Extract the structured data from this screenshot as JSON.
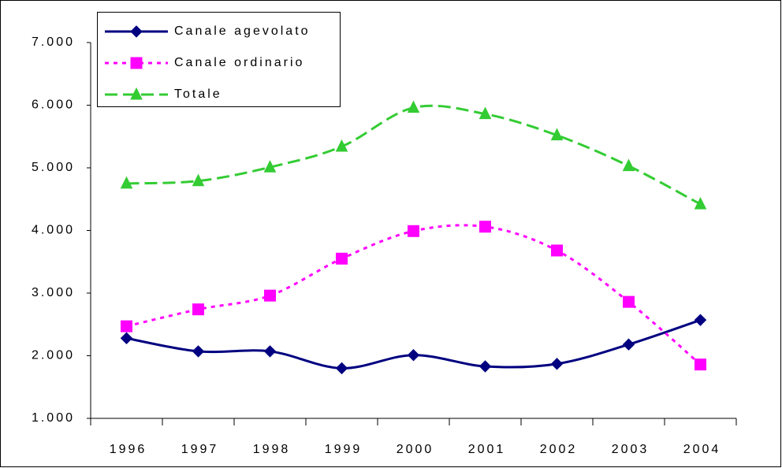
{
  "chart_data": {
    "type": "line",
    "categories": [
      "1996",
      "1997",
      "1998",
      "1999",
      "2000",
      "2001",
      "2002",
      "2003",
      "2004"
    ],
    "series": [
      {
        "name": "Canale agevolato",
        "color": "#000080",
        "marker": "diamond",
        "dash": "solid",
        "values": [
          2280,
          2070,
          2070,
          1800,
          2010,
          1830,
          1870,
          2180,
          2570
        ]
      },
      {
        "name": "Canale ordinario",
        "color": "#ff00ff",
        "marker": "square",
        "dash": "dotted",
        "values": [
          2470,
          2740,
          2960,
          3550,
          3990,
          4060,
          3680,
          2860,
          1860
        ]
      },
      {
        "name": "Totale",
        "color": "#33cc33",
        "marker": "triangle",
        "dash": "dashed",
        "values": [
          4750,
          4790,
          5010,
          5340,
          5960,
          5860,
          5520,
          5030,
          4420
        ]
      }
    ],
    "ylim": [
      1000,
      7000
    ],
    "yticks": [
      {
        "value": 1000,
        "label": "1.000"
      },
      {
        "value": 2000,
        "label": "2.000"
      },
      {
        "value": 3000,
        "label": "3.000"
      },
      {
        "value": 4000,
        "label": "4.000"
      },
      {
        "value": 5000,
        "label": "5.000"
      },
      {
        "value": 6000,
        "label": "6.000"
      },
      {
        "value": 7000,
        "label": "7.000"
      }
    ],
    "grid": false,
    "legend": "upper left",
    "smooth": true
  }
}
